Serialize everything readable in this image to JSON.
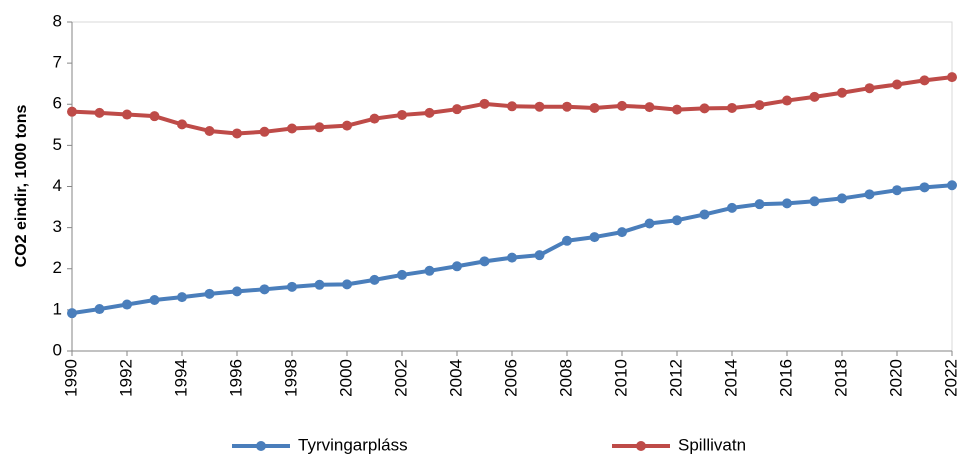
{
  "chart_data": {
    "type": "line",
    "ylabel": "CO2  eindir, 1000 tons",
    "x": [
      1990,
      1991,
      1992,
      1993,
      1994,
      1995,
      1996,
      1997,
      1998,
      1999,
      2000,
      2001,
      2002,
      2003,
      2004,
      2005,
      2006,
      2007,
      2008,
      2009,
      2010,
      2011,
      2012,
      2013,
      2014,
      2015,
      2016,
      2017,
      2018,
      2019,
      2020,
      2021,
      2022
    ],
    "series": [
      {
        "name": "Tyrvingarpláss",
        "color": "#4a7ebb",
        "values": [
          0.92,
          1.02,
          1.13,
          1.24,
          1.31,
          1.39,
          1.45,
          1.5,
          1.56,
          1.61,
          1.62,
          1.73,
          1.85,
          1.95,
          2.06,
          2.18,
          2.27,
          2.33,
          2.68,
          2.77,
          2.89,
          3.1,
          3.18,
          3.32,
          3.48,
          3.57,
          3.59,
          3.64,
          3.71,
          3.81,
          3.91,
          3.98,
          4.03
        ]
      },
      {
        "name": "Spillivatn",
        "color": "#be4b48",
        "values": [
          5.82,
          5.79,
          5.75,
          5.71,
          5.51,
          5.35,
          5.29,
          5.33,
          5.41,
          5.44,
          5.48,
          5.65,
          5.74,
          5.79,
          5.88,
          6.01,
          5.95,
          5.94,
          5.94,
          5.91,
          5.96,
          5.93,
          5.87,
          5.9,
          5.91,
          5.98,
          6.09,
          6.18,
          6.28,
          6.39,
          6.48,
          6.58,
          6.66
        ]
      }
    ],
    "xlim": [
      1990,
      2022
    ],
    "xticks": [
      1990,
      1992,
      1994,
      1996,
      1998,
      2000,
      2002,
      2004,
      2006,
      2008,
      2010,
      2012,
      2014,
      2016,
      2018,
      2020,
      2022
    ],
    "ylim": [
      0,
      8
    ],
    "yticks": [
      0,
      1,
      2,
      3,
      4,
      5,
      6,
      7,
      8
    ],
    "grid": false,
    "legend": "bottom"
  }
}
